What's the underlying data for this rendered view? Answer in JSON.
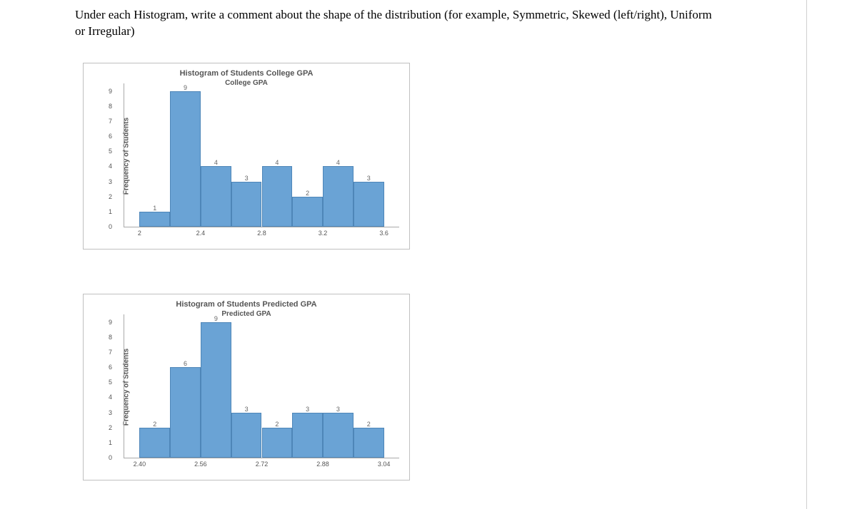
{
  "prompt": "Under each Histogram, write a comment about the shape of the distribution (for example, Symmetric, Skewed (left/right), Uniform or Irregular)",
  "chart1": {
    "type": "histogram",
    "title": "Histogram of Students College GPA",
    "xlabel": "College GPA",
    "ylabel": "Frequency of Students",
    "ylim": [
      0,
      9.5
    ],
    "yticks": [
      0,
      1,
      2,
      3,
      4,
      5,
      6,
      7,
      8,
      9
    ],
    "xlim": [
      1.9,
      3.7
    ],
    "xticks": [
      2.0,
      2.4,
      2.8,
      3.2,
      3.6
    ],
    "bin_width": 0.2,
    "bins": [
      {
        "start": 2.0,
        "value": 1
      },
      {
        "start": 2.2,
        "value": 9
      },
      {
        "start": 2.4,
        "value": 4
      },
      {
        "start": 2.6,
        "value": 3
      },
      {
        "start": 2.8,
        "value": 4
      },
      {
        "start": 3.0,
        "value": 2
      },
      {
        "start": 3.2,
        "value": 4
      },
      {
        "start": 3.4,
        "value": 3
      }
    ],
    "bar_color": "#6aa3d5",
    "bar_border": "#4e86b8",
    "background": "#ffffff",
    "title_fontsize": 11,
    "label_fontsize": 10,
    "tick_fontsize": 9,
    "barlabel_fontsize": 9
  },
  "chart2": {
    "type": "histogram",
    "title": "Histogram of Students Predicted GPA",
    "xlabel": "Predicted GPA",
    "ylabel": "Frequency of Students",
    "ylim": [
      0,
      9.5
    ],
    "yticks": [
      0,
      1,
      2,
      3,
      4,
      5,
      6,
      7,
      8,
      9
    ],
    "xlim": [
      2.36,
      3.08
    ],
    "xticks": [
      2.4,
      2.56,
      2.72,
      2.88,
      3.04
    ],
    "xtick_format": 2,
    "bin_width": 0.08,
    "bins": [
      {
        "start": 2.4,
        "value": 2
      },
      {
        "start": 2.48,
        "value": 6
      },
      {
        "start": 2.56,
        "value": 9
      },
      {
        "start": 2.64,
        "value": 3
      },
      {
        "start": 2.72,
        "value": 2
      },
      {
        "start": 2.8,
        "value": 3
      },
      {
        "start": 2.88,
        "value": 3
      },
      {
        "start": 2.96,
        "value": 2
      }
    ],
    "bar_color": "#6aa3d5",
    "bar_border": "#4e86b8",
    "background": "#ffffff",
    "title_fontsize": 11,
    "label_fontsize": 10,
    "tick_fontsize": 9,
    "barlabel_fontsize": 9
  }
}
